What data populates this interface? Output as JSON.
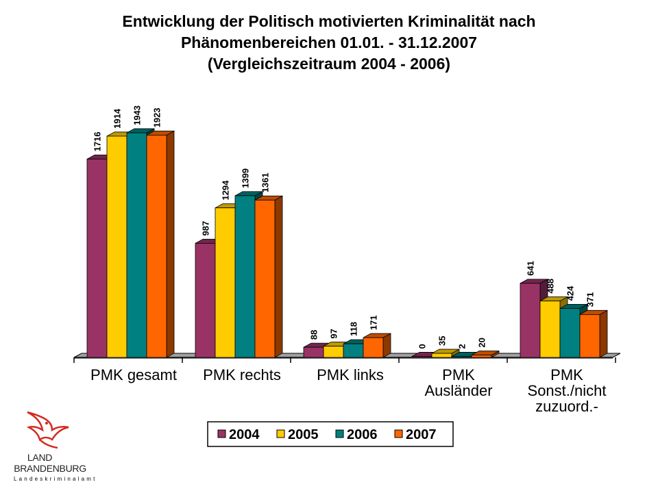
{
  "chart_data": {
    "type": "bar",
    "title_lines": [
      "Entwicklung der Politisch motivierten Kriminalität nach",
      "Phänomenbereichen 01.01. - 31.12.2007",
      "(Vergleichszeitraum 2004 - 2006)"
    ],
    "categories": [
      [
        "PMK gesamt"
      ],
      [
        "PMK rechts"
      ],
      [
        "PMK links"
      ],
      [
        "PMK",
        "Ausländer"
      ],
      [
        "PMK",
        "Sonst./nicht",
        "zuzuord.-"
      ]
    ],
    "series": [
      {
        "name": "2004",
        "color": "#993366",
        "values": [
          1716,
          987,
          88,
          0,
          641
        ]
      },
      {
        "name": "2005",
        "color": "#ffcc00",
        "values": [
          1914,
          1294,
          97,
          35,
          488
        ]
      },
      {
        "name": "2006",
        "color": "#008080",
        "values": [
          1943,
          1399,
          118,
          2,
          424
        ]
      },
      {
        "name": "2007",
        "color": "#ff6600",
        "values": [
          1923,
          1361,
          171,
          20,
          371
        ]
      }
    ],
    "ylim": [
      0,
      2000
    ],
    "grid": false,
    "style": "3d",
    "legend_position": "bottom"
  },
  "logo": {
    "line1": "LAND",
    "line2": "BRANDENBURG",
    "line3": "Landeskriminalamt",
    "eagle_color": "#d42a20"
  }
}
